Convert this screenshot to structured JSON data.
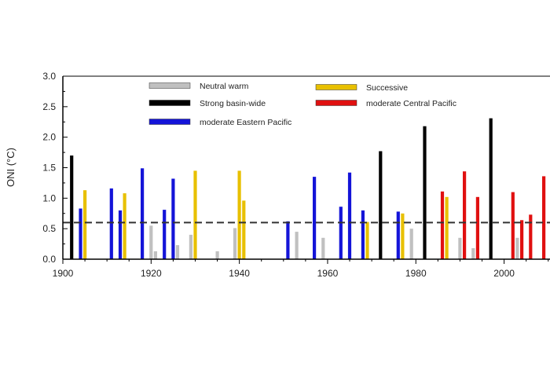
{
  "chart_data": {
    "type": "bar",
    "ylabel": "ONI (°C)",
    "xlim": [
      1900,
      2009
    ],
    "ylim": [
      0,
      3.0
    ],
    "x_ticks": [
      "1900",
      "1920",
      "1940",
      "1960",
      "1980",
      "2000"
    ],
    "y_ticks": [
      "0.0",
      "0.5",
      "1.0",
      "1.5",
      "2.0",
      "2.5",
      "3.0"
    ],
    "threshold": 0.6,
    "legend_position": "top-center",
    "grid": false,
    "series": [
      {
        "name": "Neutral warm",
        "color": "#c0c0c0",
        "points": [
          {
            "x": 1920,
            "y": 0.55
          },
          {
            "x": 1921,
            "y": 0.13
          },
          {
            "x": 1926,
            "y": 0.23
          },
          {
            "x": 1929,
            "y": 0.4
          },
          {
            "x": 1935,
            "y": 0.13
          },
          {
            "x": 1939,
            "y": 0.51
          },
          {
            "x": 1953,
            "y": 0.45
          },
          {
            "x": 1959,
            "y": 0.35
          },
          {
            "x": 1979,
            "y": 0.5
          },
          {
            "x": 1990,
            "y": 0.35
          },
          {
            "x": 1993,
            "y": 0.18
          },
          {
            "x": 2003,
            "y": 0.35
          }
        ]
      },
      {
        "name": "Successive",
        "color": "#e8c000",
        "points": [
          {
            "x": 1905,
            "y": 1.13
          },
          {
            "x": 1914,
            "y": 1.08
          },
          {
            "x": 1930,
            "y": 1.45
          },
          {
            "x": 1940,
            "y": 1.45
          },
          {
            "x": 1941,
            "y": 0.96
          },
          {
            "x": 1969,
            "y": 0.61
          },
          {
            "x": 1977,
            "y": 0.75
          },
          {
            "x": 1987,
            "y": 1.02
          }
        ]
      },
      {
        "name": "Strong basin-wide",
        "color": "#000000",
        "points": [
          {
            "x": 1902,
            "y": 1.7
          },
          {
            "x": 1972,
            "y": 1.77
          },
          {
            "x": 1982,
            "y": 2.18
          },
          {
            "x": 1997,
            "y": 2.31
          }
        ]
      },
      {
        "name": "moderate Central Pacific",
        "color": "#e01010",
        "points": [
          {
            "x": 1986,
            "y": 1.11
          },
          {
            "x": 1991,
            "y": 1.44
          },
          {
            "x": 1994,
            "y": 1.02
          },
          {
            "x": 2002,
            "y": 1.1
          },
          {
            "x": 2004,
            "y": 0.64
          },
          {
            "x": 2006,
            "y": 0.73
          },
          {
            "x": 2009,
            "y": 1.36
          }
        ]
      },
      {
        "name": "moderate Eastern Pacific",
        "color": "#1414d8",
        "points": [
          {
            "x": 1904,
            "y": 0.83
          },
          {
            "x": 1911,
            "y": 1.16
          },
          {
            "x": 1913,
            "y": 0.8
          },
          {
            "x": 1918,
            "y": 1.49
          },
          {
            "x": 1923,
            "y": 0.81
          },
          {
            "x": 1925,
            "y": 1.32
          },
          {
            "x": 1951,
            "y": 0.62
          },
          {
            "x": 1957,
            "y": 1.35
          },
          {
            "x": 1963,
            "y": 0.86
          },
          {
            "x": 1965,
            "y": 1.42
          },
          {
            "x": 1968,
            "y": 0.8
          },
          {
            "x": 1976,
            "y": 0.78
          }
        ]
      }
    ]
  }
}
